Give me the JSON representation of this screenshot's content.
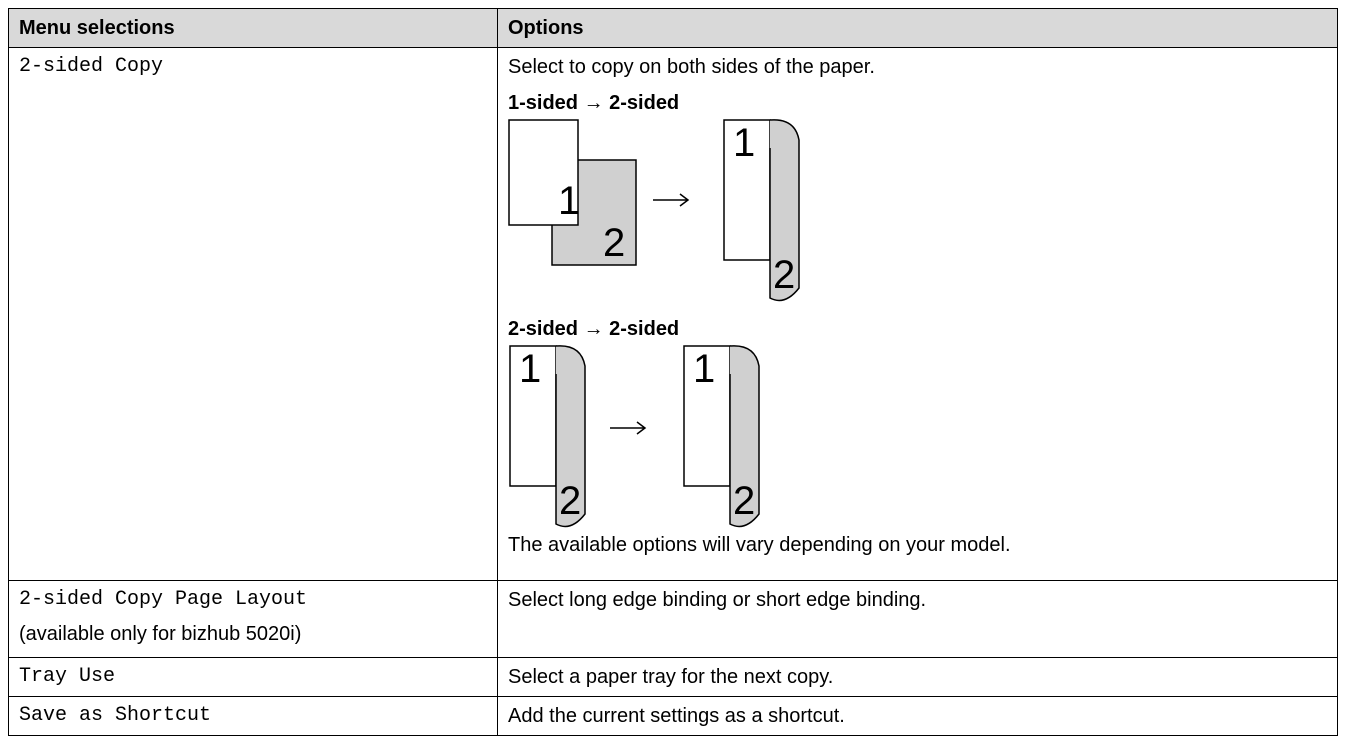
{
  "table": {
    "header": [
      "Menu selections",
      "Options"
    ],
    "rows": [
      {
        "menu": "2-sided Copy",
        "description": "Select to copy on both sides of the paper.",
        "diagrams": [
          {
            "title": "1-sided → 2-sided",
            "labels": [
              "1",
              "2",
              "1",
              "2"
            ]
          },
          {
            "title": "2-sided → 2-sided",
            "labels": [
              "1",
              "2",
              "1",
              "2"
            ]
          }
        ],
        "note": "The available options will vary depending on your model."
      },
      {
        "menu": "2-sided Copy Page Layout",
        "menu_note": "(available only for bizhub 5020i)",
        "description": "Select long edge binding or short edge binding."
      },
      {
        "menu": "Tray Use",
        "description": "Select a paper tray for the next copy."
      },
      {
        "menu": "Save as Shortcut",
        "description": "Add the current settings as a shortcut."
      }
    ]
  }
}
